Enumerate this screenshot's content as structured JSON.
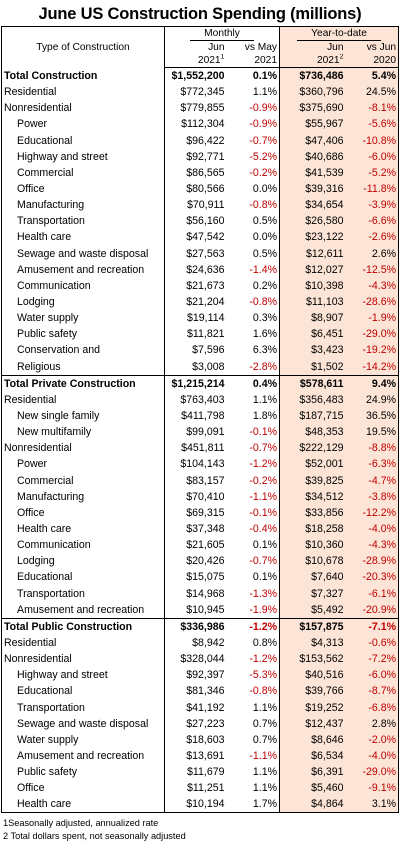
{
  "title": "June US Construction Spending (millions)",
  "header": {
    "type_label": "Type of Construction",
    "monthly_label": "Monthly",
    "ytd_label": "Year-to-date",
    "col_jun": "Jun",
    "col_vs_may": "vs May",
    "col_year_2021": "2021",
    "col_vs_jun": "vs Jun",
    "col_year_2020": "2020",
    "sup1": "1",
    "sup2": "2"
  },
  "rows": [
    {
      "label": "Total Construction",
      "jun": "$1,552,200",
      "vs_may": "0.1%",
      "ytd": "$736,486",
      "vs_jun": "5.4%",
      "bold": true,
      "indent": 0,
      "sec": true
    },
    {
      "label": "Residential",
      "jun": "$772,345",
      "vs_may": "1.1%",
      "ytd": "$360,796",
      "vs_jun": "24.5%",
      "bold": false,
      "indent": 0,
      "sec": false
    },
    {
      "label": "Nonresidential",
      "jun": "$779,855",
      "vs_may": "-0.9%",
      "ytd": "$375,690",
      "vs_jun": "-8.1%",
      "bold": false,
      "indent": 0,
      "sec": false
    },
    {
      "label": "Power",
      "jun": "$112,304",
      "vs_may": "-0.9%",
      "ytd": "$55,967",
      "vs_jun": "-5.6%",
      "bold": false,
      "indent": 1,
      "sec": false
    },
    {
      "label": "Educational",
      "jun": "$96,422",
      "vs_may": "-0.7%",
      "ytd": "$47,406",
      "vs_jun": "-10.8%",
      "bold": false,
      "indent": 1,
      "sec": false
    },
    {
      "label": "Highway and street",
      "jun": "$92,771",
      "vs_may": "-5.2%",
      "ytd": "$40,686",
      "vs_jun": "-6.0%",
      "bold": false,
      "indent": 1,
      "sec": false
    },
    {
      "label": "Commercial",
      "jun": "$86,565",
      "vs_may": "-0.2%",
      "ytd": "$41,539",
      "vs_jun": "-5.2%",
      "bold": false,
      "indent": 1,
      "sec": false
    },
    {
      "label": "Office",
      "jun": "$80,566",
      "vs_may": "0.0%",
      "ytd": "$39,316",
      "vs_jun": "-11.8%",
      "bold": false,
      "indent": 1,
      "sec": false
    },
    {
      "label": "Manufacturing",
      "jun": "$70,911",
      "vs_may": "-0.8%",
      "ytd": "$34,654",
      "vs_jun": "-3.9%",
      "bold": false,
      "indent": 1,
      "sec": false
    },
    {
      "label": "Transportation",
      "jun": "$56,160",
      "vs_may": "0.5%",
      "ytd": "$26,580",
      "vs_jun": "-6.6%",
      "bold": false,
      "indent": 1,
      "sec": false
    },
    {
      "label": "Health care",
      "jun": "$47,542",
      "vs_may": "0.0%",
      "ytd": "$23,122",
      "vs_jun": "-2.6%",
      "bold": false,
      "indent": 1,
      "sec": false
    },
    {
      "label": "Sewage and waste disposal",
      "jun": "$27,563",
      "vs_may": "0.5%",
      "ytd": "$12,611",
      "vs_jun": "2.6%",
      "bold": false,
      "indent": 1,
      "sec": false
    },
    {
      "label": "Amusement and recreation",
      "jun": "$24,636",
      "vs_may": "-1.4%",
      "ytd": "$12,027",
      "vs_jun": "-12.5%",
      "bold": false,
      "indent": 1,
      "sec": false
    },
    {
      "label": "Communication",
      "jun": "$21,673",
      "vs_may": "0.2%",
      "ytd": "$10,398",
      "vs_jun": "-4.3%",
      "bold": false,
      "indent": 1,
      "sec": false
    },
    {
      "label": "Lodging",
      "jun": "$21,204",
      "vs_may": "-0.8%",
      "ytd": "$11,103",
      "vs_jun": "-28.6%",
      "bold": false,
      "indent": 1,
      "sec": false
    },
    {
      "label": "Water supply",
      "jun": "$19,114",
      "vs_may": "0.3%",
      "ytd": "$8,907",
      "vs_jun": "-1.9%",
      "bold": false,
      "indent": 1,
      "sec": false
    },
    {
      "label": "Public safety",
      "jun": "$11,821",
      "vs_may": "1.6%",
      "ytd": "$6,451",
      "vs_jun": "-29.0%",
      "bold": false,
      "indent": 1,
      "sec": false
    },
    {
      "label": "Conservation and",
      "jun": "$7,596",
      "vs_may": "6.3%",
      "ytd": "$3,423",
      "vs_jun": "-19.2%",
      "bold": false,
      "indent": 1,
      "sec": false
    },
    {
      "label": "Religious",
      "jun": "$3,008",
      "vs_may": "-2.8%",
      "ytd": "$1,502",
      "vs_jun": "-14.2%",
      "bold": false,
      "indent": 1,
      "sec": false
    },
    {
      "label": "Total Private Construction",
      "jun": "$1,215,214",
      "vs_may": "0.4%",
      "ytd": "$578,611",
      "vs_jun": "9.4%",
      "bold": true,
      "indent": 0,
      "sec": true
    },
    {
      "label": "Residential",
      "jun": "$763,403",
      "vs_may": "1.1%",
      "ytd": "$356,483",
      "vs_jun": "24.9%",
      "bold": false,
      "indent": 0,
      "sec": false
    },
    {
      "label": "New single family",
      "jun": "$411,798",
      "vs_may": "1.8%",
      "ytd": "$187,715",
      "vs_jun": "36.5%",
      "bold": false,
      "indent": 1,
      "sec": false
    },
    {
      "label": "New multifamily",
      "jun": "$99,091",
      "vs_may": "-0.1%",
      "ytd": "$48,353",
      "vs_jun": "19.5%",
      "bold": false,
      "indent": 1,
      "sec": false
    },
    {
      "label": "Nonresidential",
      "jun": "$451,811",
      "vs_may": "-0.7%",
      "ytd": "$222,129",
      "vs_jun": "-8.8%",
      "bold": false,
      "indent": 0,
      "sec": false
    },
    {
      "label": "Power",
      "jun": "$104,143",
      "vs_may": "-1.2%",
      "ytd": "$52,001",
      "vs_jun": "-6.3%",
      "bold": false,
      "indent": 1,
      "sec": false
    },
    {
      "label": "Commercial",
      "jun": "$83,157",
      "vs_may": "-0.2%",
      "ytd": "$39,825",
      "vs_jun": "-4.7%",
      "bold": false,
      "indent": 1,
      "sec": false
    },
    {
      "label": "Manufacturing",
      "jun": "$70,410",
      "vs_may": "-1.1%",
      "ytd": "$34,512",
      "vs_jun": "-3.8%",
      "bold": false,
      "indent": 1,
      "sec": false
    },
    {
      "label": "Office",
      "jun": "$69,315",
      "vs_may": "-0.1%",
      "ytd": "$33,856",
      "vs_jun": "-12.2%",
      "bold": false,
      "indent": 1,
      "sec": false
    },
    {
      "label": "Health care",
      "jun": "$37,348",
      "vs_may": "-0.4%",
      "ytd": "$18,258",
      "vs_jun": "-4.0%",
      "bold": false,
      "indent": 1,
      "sec": false
    },
    {
      "label": "Communication",
      "jun": "$21,605",
      "vs_may": "0.1%",
      "ytd": "$10,360",
      "vs_jun": "-4.3%",
      "bold": false,
      "indent": 1,
      "sec": false
    },
    {
      "label": "Lodging",
      "jun": "$20,426",
      "vs_may": "-0.7%",
      "ytd": "$10,678",
      "vs_jun": "-28.9%",
      "bold": false,
      "indent": 1,
      "sec": false
    },
    {
      "label": "Educational",
      "jun": "$15,075",
      "vs_may": "0.1%",
      "ytd": "$7,640",
      "vs_jun": "-20.3%",
      "bold": false,
      "indent": 1,
      "sec": false
    },
    {
      "label": "Transportation",
      "jun": "$14,968",
      "vs_may": "-1.3%",
      "ytd": "$7,327",
      "vs_jun": "-6.1%",
      "bold": false,
      "indent": 1,
      "sec": false
    },
    {
      "label": "Amusement and recreation",
      "jun": "$10,945",
      "vs_may": "-1.9%",
      "ytd": "$5,492",
      "vs_jun": "-20.9%",
      "bold": false,
      "indent": 1,
      "sec": false
    },
    {
      "label": "Total Public Construction",
      "jun": "$336,986",
      "vs_may": "-1.2%",
      "ytd": "$157,875",
      "vs_jun": "-7.1%",
      "bold": true,
      "indent": 0,
      "sec": true
    },
    {
      "label": "Residential",
      "jun": "$8,942",
      "vs_may": "0.8%",
      "ytd": "$4,313",
      "vs_jun": "-0.6%",
      "bold": false,
      "indent": 0,
      "sec": false
    },
    {
      "label": "Nonresidential",
      "jun": "$328,044",
      "vs_may": "-1.2%",
      "ytd": "$153,562",
      "vs_jun": "-7.2%",
      "bold": false,
      "indent": 0,
      "sec": false
    },
    {
      "label": "Highway and street",
      "jun": "$92,397",
      "vs_may": "-5.3%",
      "ytd": "$40,516",
      "vs_jun": "-6.0%",
      "bold": false,
      "indent": 1,
      "sec": false
    },
    {
      "label": "Educational",
      "jun": "$81,346",
      "vs_may": "-0.8%",
      "ytd": "$39,766",
      "vs_jun": "-8.7%",
      "bold": false,
      "indent": 1,
      "sec": false
    },
    {
      "label": "Transportation",
      "jun": "$41,192",
      "vs_may": "1.1%",
      "ytd": "$19,252",
      "vs_jun": "-6.8%",
      "bold": false,
      "indent": 1,
      "sec": false
    },
    {
      "label": "Sewage and waste disposal",
      "jun": "$27,223",
      "vs_may": "0.7%",
      "ytd": "$12,437",
      "vs_jun": "2.8%",
      "bold": false,
      "indent": 1,
      "sec": false
    },
    {
      "label": "Water supply",
      "jun": "$18,603",
      "vs_may": "0.7%",
      "ytd": "$8,646",
      "vs_jun": "-2.0%",
      "bold": false,
      "indent": 1,
      "sec": false
    },
    {
      "label": "Amusement and recreation",
      "jun": "$13,691",
      "vs_may": "-1.1%",
      "ytd": "$6,534",
      "vs_jun": "-4.0%",
      "bold": false,
      "indent": 1,
      "sec": false
    },
    {
      "label": "Public safety",
      "jun": "$11,679",
      "vs_may": "1.1%",
      "ytd": "$6,391",
      "vs_jun": "-29.0%",
      "bold": false,
      "indent": 1,
      "sec": false
    },
    {
      "label": "Office",
      "jun": "$11,251",
      "vs_may": "1.1%",
      "ytd": "$5,460",
      "vs_jun": "-9.1%",
      "bold": false,
      "indent": 1,
      "sec": false
    },
    {
      "label": "Health care",
      "jun": "$10,194",
      "vs_may": "1.7%",
      "ytd": "$4,864",
      "vs_jun": "3.1%",
      "bold": false,
      "indent": 1,
      "sec": false
    }
  ],
  "footnotes": [
    "1Seasonally adjusted, annualized rate",
    "2 Total dollars spent, not seasonally adjusted"
  ],
  "colors": {
    "ytd_background": "#fce4d6",
    "negative_text": "#c00000",
    "text": "#000000",
    "border": "#000000"
  }
}
